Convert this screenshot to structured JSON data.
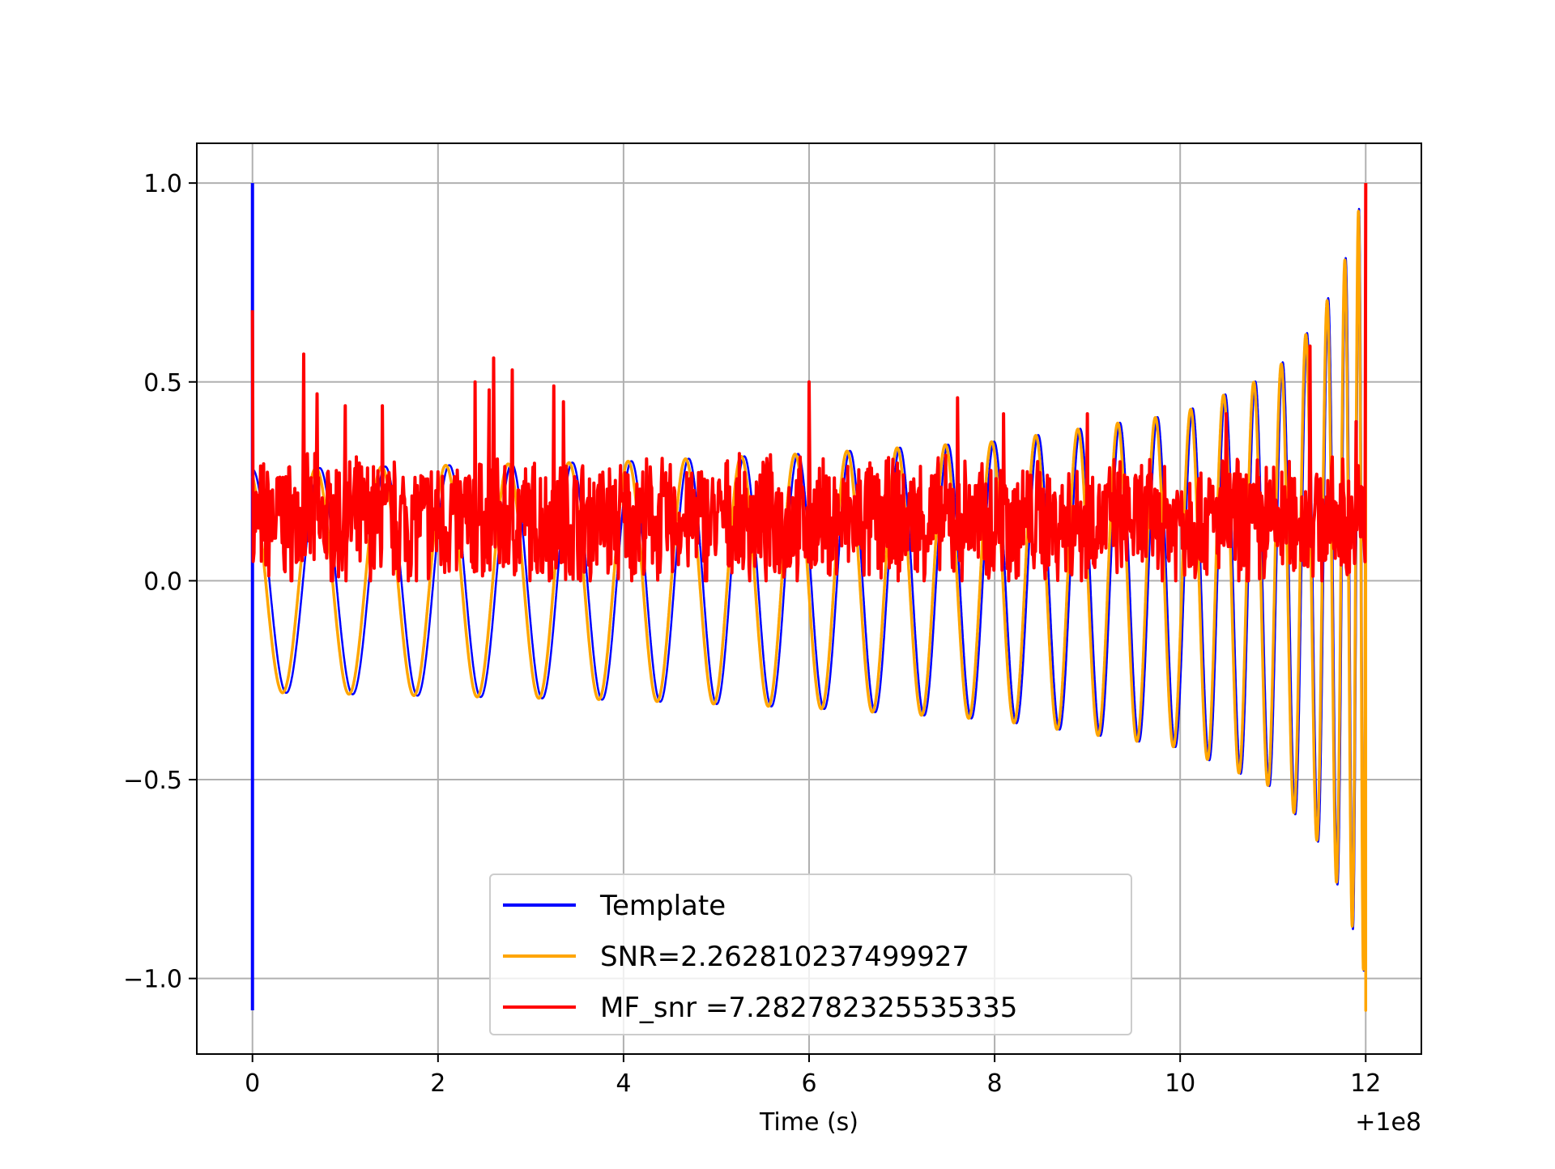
{
  "chart_data": {
    "type": "line",
    "title": "",
    "xlabel": "Time (s)",
    "ylabel": "",
    "x_offset_label": "+1e8",
    "xlim": [
      -0.6,
      12.6
    ],
    "ylim": [
      -1.19,
      1.1
    ],
    "x_ticks": [
      0,
      2,
      4,
      6,
      8,
      10,
      12
    ],
    "x_tick_labels": [
      "0",
      "2",
      "4",
      "6",
      "8",
      "10",
      "12"
    ],
    "y_ticks": [
      1.0,
      0.5,
      0.0,
      -0.5,
      -1.0
    ],
    "y_tick_labels": [
      "1.0",
      "0.5",
      "0.0",
      "−0.5",
      "−1.0"
    ],
    "grid": true,
    "legend_position": "lower-center",
    "series": [
      {
        "name": "Template",
        "color": "#0000ff",
        "description_kind": "chirp",
        "x_start": 0.0,
        "x_end": 12.0,
        "start_spike": [
          1.0,
          -1.08
        ],
        "amplitude_envelope": [
          [
            0,
            0.28
          ],
          [
            2,
            0.29
          ],
          [
            4,
            0.3
          ],
          [
            6,
            0.32
          ],
          [
            8,
            0.35
          ],
          [
            10,
            0.42
          ],
          [
            11,
            0.52
          ],
          [
            11.5,
            0.66
          ],
          [
            11.8,
            0.82
          ],
          [
            12,
            1.0
          ]
        ],
        "end_min": -1.08
      },
      {
        "name": "SNR=2.262810237499927",
        "color": "#ffa500",
        "description_kind": "chirp",
        "x_start": 0.0,
        "x_end": 12.0,
        "amplitude_envelope": [
          [
            0,
            0.28
          ],
          [
            2,
            0.29
          ],
          [
            4,
            0.3
          ],
          [
            6,
            0.32
          ],
          [
            8,
            0.35
          ],
          [
            10,
            0.42
          ],
          [
            11,
            0.52
          ],
          [
            11.5,
            0.66
          ],
          [
            11.8,
            0.82
          ],
          [
            12,
            1.0
          ]
        ],
        "end_min": -1.08
      },
      {
        "name": "MF_snr =7.282782325535335",
        "color": "#ff0000",
        "description_kind": "noisy",
        "x_start": 0.0,
        "x_end": 12.0,
        "start_value": 0.68,
        "baseline": 0.15,
        "range": [
          0.0,
          0.3
        ],
        "peaks": [
          [
            0.55,
            0.57
          ],
          [
            0.7,
            0.47
          ],
          [
            1.0,
            0.44
          ],
          [
            1.4,
            0.44
          ],
          [
            2.4,
            0.5
          ],
          [
            2.55,
            0.48
          ],
          [
            2.6,
            0.56
          ],
          [
            2.8,
            0.53
          ],
          [
            3.25,
            0.49
          ],
          [
            3.35,
            0.45
          ],
          [
            6.0,
            0.5
          ],
          [
            7.6,
            0.46
          ],
          [
            8.1,
            0.42
          ],
          [
            9.0,
            0.42
          ],
          [
            10.5,
            0.42
          ],
          [
            11.4,
            0.59
          ],
          [
            11.9,
            0.4
          ],
          [
            12.0,
            1.0
          ]
        ]
      }
    ]
  }
}
